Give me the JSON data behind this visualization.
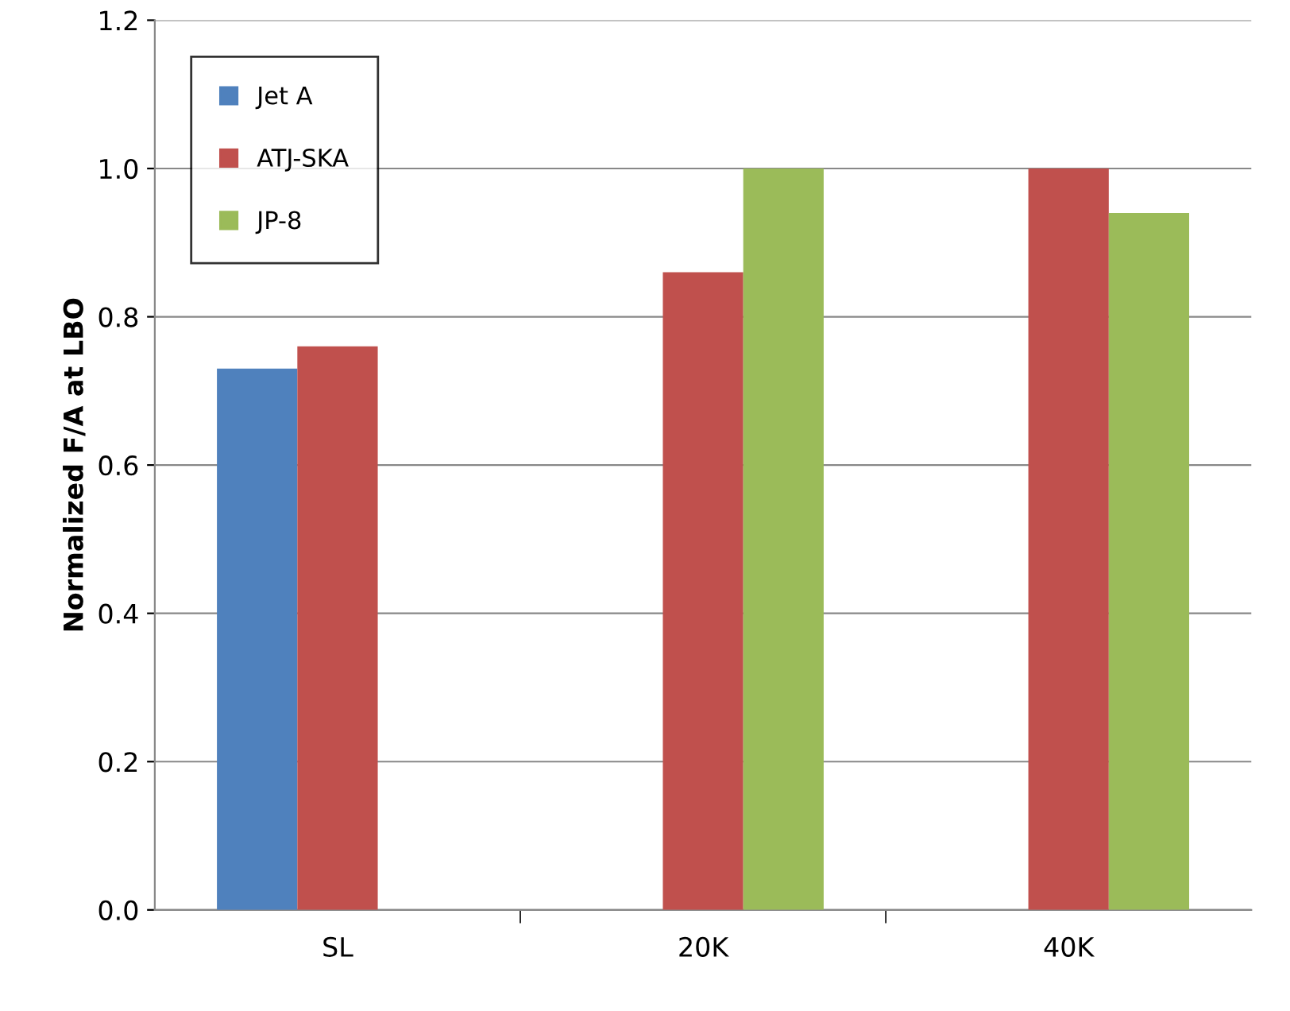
{
  "chart_data": {
    "type": "bar",
    "ylabel": "Normalized F/A at LBO",
    "categories": [
      "SL",
      "20K",
      "40K"
    ],
    "series": [
      {
        "name": "Jet A",
        "color": "#4f81bd",
        "values": [
          0.73,
          null,
          null
        ]
      },
      {
        "name": "ATJ-SKA",
        "color": "#c0504d",
        "values": [
          0.76,
          0.86,
          1.0
        ]
      },
      {
        "name": "JP-8",
        "color": "#9bbb59",
        "values": [
          null,
          1.0,
          0.94
        ]
      }
    ],
    "ylim": [
      0,
      1.2
    ],
    "yticks": [
      {
        "value": 0,
        "label": "0.0"
      },
      {
        "value": 0.2,
        "label": "0.2"
      },
      {
        "value": 0.4,
        "label": "0.4"
      },
      {
        "value": 0.6,
        "label": "0.6"
      },
      {
        "value": 0.8,
        "label": "0.8"
      },
      {
        "value": 1.0,
        "label": "1.0"
      },
      {
        "value": 1.2,
        "label": "1.2"
      }
    ],
    "grid": "y",
    "legend": "top left"
  }
}
